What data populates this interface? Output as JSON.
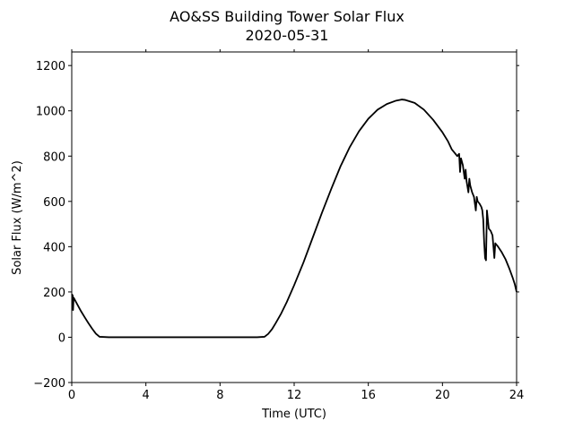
{
  "chart_data": {
    "type": "line",
    "title": "AO&SS Building Tower Solar Flux",
    "subtitle": "2020-05-31",
    "xlabel": "Time (UTC)",
    "ylabel": "Solar Flux (W/m^2)",
    "xlim": [
      0,
      24
    ],
    "ylim": [
      -200,
      1260
    ],
    "xticks": [
      0,
      4,
      8,
      12,
      16,
      20,
      24
    ],
    "yticks": [
      -200,
      0,
      200,
      400,
      600,
      800,
      1000,
      1200
    ],
    "xtick_labels": [
      "0",
      "4",
      "8",
      "12",
      "16",
      "20",
      "24"
    ],
    "ytick_labels": [
      "−200",
      "0",
      "200",
      "400",
      "600",
      "800",
      "1000",
      "1200"
    ],
    "grid": false,
    "series_color": "#000000",
    "series": [
      {
        "points": [
          [
            0.0,
            190
          ],
          [
            0.05,
            185
          ],
          [
            0.07,
            120
          ],
          [
            0.1,
            175
          ],
          [
            0.3,
            145
          ],
          [
            0.5,
            115
          ],
          [
            0.7,
            88
          ],
          [
            0.9,
            62
          ],
          [
            1.1,
            38
          ],
          [
            1.3,
            16
          ],
          [
            1.5,
            2
          ],
          [
            2.0,
            0
          ],
          [
            4.0,
            0
          ],
          [
            6.0,
            0
          ],
          [
            8.0,
            0
          ],
          [
            10.0,
            0
          ],
          [
            10.4,
            2
          ],
          [
            10.6,
            15
          ],
          [
            10.8,
            35
          ],
          [
            11.0,
            62
          ],
          [
            11.3,
            105
          ],
          [
            11.6,
            155
          ],
          [
            12.0,
            230
          ],
          [
            12.5,
            330
          ],
          [
            13.0,
            440
          ],
          [
            13.5,
            550
          ],
          [
            14.0,
            655
          ],
          [
            14.5,
            755
          ],
          [
            15.0,
            840
          ],
          [
            15.5,
            910
          ],
          [
            16.0,
            965
          ],
          [
            16.5,
            1005
          ],
          [
            17.0,
            1030
          ],
          [
            17.5,
            1045
          ],
          [
            17.8,
            1050
          ],
          [
            18.0,
            1048
          ],
          [
            18.5,
            1035
          ],
          [
            19.0,
            1005
          ],
          [
            19.5,
            960
          ],
          [
            20.0,
            905
          ],
          [
            20.3,
            865
          ],
          [
            20.5,
            830
          ],
          [
            20.8,
            800
          ],
          [
            20.9,
            810
          ],
          [
            20.95,
            730
          ],
          [
            21.0,
            790
          ],
          [
            21.1,
            760
          ],
          [
            21.2,
            700
          ],
          [
            21.25,
            740
          ],
          [
            21.3,
            690
          ],
          [
            21.4,
            640
          ],
          [
            21.45,
            700
          ],
          [
            21.5,
            670
          ],
          [
            21.6,
            640
          ],
          [
            21.7,
            620
          ],
          [
            21.8,
            560
          ],
          [
            21.85,
            620
          ],
          [
            21.9,
            600
          ],
          [
            22.0,
            590
          ],
          [
            22.1,
            575
          ],
          [
            22.15,
            560
          ],
          [
            22.2,
            520
          ],
          [
            22.25,
            420
          ],
          [
            22.3,
            350
          ],
          [
            22.35,
            340
          ],
          [
            22.4,
            560
          ],
          [
            22.45,
            520
          ],
          [
            22.5,
            480
          ],
          [
            22.6,
            470
          ],
          [
            22.7,
            450
          ],
          [
            22.75,
            400
          ],
          [
            22.8,
            350
          ],
          [
            22.85,
            415
          ],
          [
            23.0,
            400
          ],
          [
            23.2,
            375
          ],
          [
            23.4,
            345
          ],
          [
            23.6,
            305
          ],
          [
            23.8,
            260
          ],
          [
            23.9,
            235
          ],
          [
            24.0,
            200
          ]
        ]
      }
    ]
  }
}
